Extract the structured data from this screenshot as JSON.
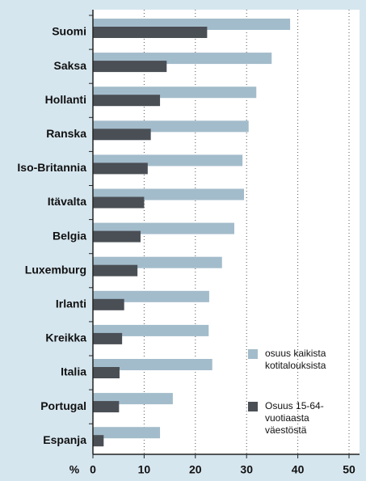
{
  "chart_data": {
    "type": "barh",
    "categories": [
      "Suomi",
      "Saksa",
      "Hollanti",
      "Ranska",
      "Iso-Britannia",
      "Itävalta",
      "Belgia",
      "Luxemburg",
      "Irlanti",
      "Kreikka",
      "Italia",
      "Portugal",
      "Espanja"
    ],
    "series": [
      {
        "name": "osuus kaikista kotitalouksista",
        "color": "#a3bccb",
        "values": [
          38.5,
          34.9,
          31.9,
          30.4,
          29.2,
          29.5,
          27.6,
          25.2,
          22.7,
          22.6,
          23.3,
          15.6,
          13.1
        ]
      },
      {
        "name": "Osuus 15-64-vuotiaasta väestöstä",
        "color": "#4a4f55",
        "values": [
          22.3,
          14.4,
          13.1,
          11.3,
          10.7,
          10.0,
          9.3,
          8.7,
          6.1,
          5.7,
          5.2,
          5.1,
          2.1
        ]
      }
    ],
    "xlabel": "%",
    "xlim": [
      0,
      50
    ],
    "xticks": [
      0,
      10,
      20,
      30,
      40,
      50
    ],
    "grid": true
  }
}
